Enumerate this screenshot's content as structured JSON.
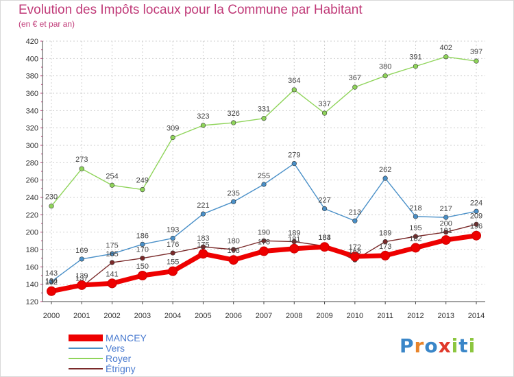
{
  "header": {
    "title": "Evolution des Impôts locaux pour la Commune par Habitant",
    "subtitle": "(en € et par an)"
  },
  "brand": {
    "letters": [
      {
        "ch": "P",
        "color": "#3a86c8"
      },
      {
        "ch": "r",
        "color": "#e8842a"
      },
      {
        "ch": "o",
        "color": "#3a86c8"
      },
      {
        "ch": "x",
        "color": "#e0392b"
      },
      {
        "ch": "i",
        "color": "#8cc63f"
      },
      {
        "ch": "t",
        "color": "#3a86c8"
      },
      {
        "ch": "i",
        "color": "#8cc63f"
      }
    ]
  },
  "chart_data": {
    "type": "line",
    "title": "Evolution des Impôts locaux pour la Commune par Habitant",
    "subtitle": "(en € et par an)",
    "xlabel": "",
    "ylabel": "",
    "x": [
      "2000",
      "2001",
      "2002",
      "2003",
      "2004",
      "2005",
      "2006",
      "2007",
      "2008",
      "2009",
      "2010",
      "2011",
      "2012",
      "2013",
      "2014"
    ],
    "ylim": [
      120,
      420
    ],
    "yticks": [
      120,
      140,
      160,
      180,
      200,
      220,
      240,
      260,
      280,
      300,
      320,
      340,
      360,
      380,
      400,
      420
    ],
    "grid": true,
    "legend_position": "bottom-left",
    "series": [
      {
        "name": "MANCEY",
        "color": "#ee0000",
        "emphasis": true,
        "values": [
          132,
          139,
          141,
          150,
          155,
          175,
          168,
          178,
          181,
          183,
          172,
          173,
          182,
          191,
          196
        ],
        "labels": [
          "132",
          "139",
          "141",
          "150",
          "155",
          "175",
          "168",
          "178",
          "181",
          "183",
          "172",
          "173",
          "182",
          "191",
          "196"
        ]
      },
      {
        "name": "Vers",
        "color": "#4a90c8",
        "values": [
          143,
          169,
          175,
          186,
          193,
          221,
          235,
          255,
          279,
          227,
          213,
          262,
          218,
          217,
          224
        ],
        "labels": [
          "143",
          "169",
          "175",
          "186",
          "193",
          "221",
          "235",
          "255",
          "279",
          "227",
          "213",
          "262",
          "218",
          "217",
          "224"
        ]
      },
      {
        "name": "Royer",
        "color": "#8fd45a",
        "values": [
          230,
          273,
          254,
          249,
          309,
          323,
          326,
          331,
          364,
          337,
          367,
          380,
          391,
          402,
          397
        ],
        "labels": [
          "230",
          "273",
          "254",
          "249",
          "309",
          "323",
          "326",
          "331",
          "364",
          "337",
          "367",
          "380",
          "391",
          "402",
          "397"
        ]
      },
      {
        "name": "Étrigny",
        "color": "#7a2a2a",
        "values": [
          134,
          137,
          165,
          170,
          176,
          183,
          180,
          190,
          189,
          184,
          168,
          189,
          195,
          200,
          209
        ],
        "labels": [
          "134",
          "137",
          "165",
          "170",
          "176",
          "183",
          "180",
          "190",
          "189",
          "184",
          "168",
          "189",
          "195",
          "200",
          "209"
        ]
      }
    ]
  }
}
